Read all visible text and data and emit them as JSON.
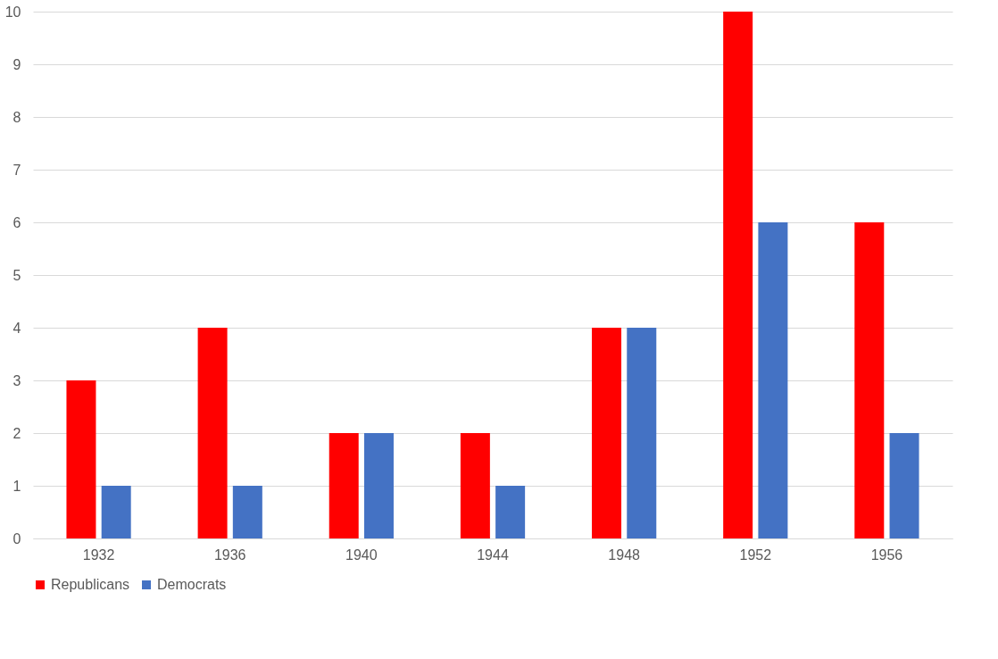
{
  "chart_data": {
    "type": "bar",
    "categories": [
      "1932",
      "1936",
      "1940",
      "1944",
      "1948",
      "1952",
      "1956"
    ],
    "series": [
      {
        "name": "Republicans",
        "color": "#ff0000",
        "values": [
          3,
          4,
          2,
          2,
          4,
          10,
          6
        ]
      },
      {
        "name": "Democrats",
        "color": "#4472c4",
        "values": [
          1,
          1,
          2,
          1,
          4,
          6,
          2
        ]
      }
    ],
    "ylim": [
      0,
      10
    ],
    "yticks": [
      0,
      1,
      2,
      3,
      4,
      5,
      6,
      7,
      8,
      9,
      10
    ],
    "grid": "y",
    "legend": "bottom"
  }
}
